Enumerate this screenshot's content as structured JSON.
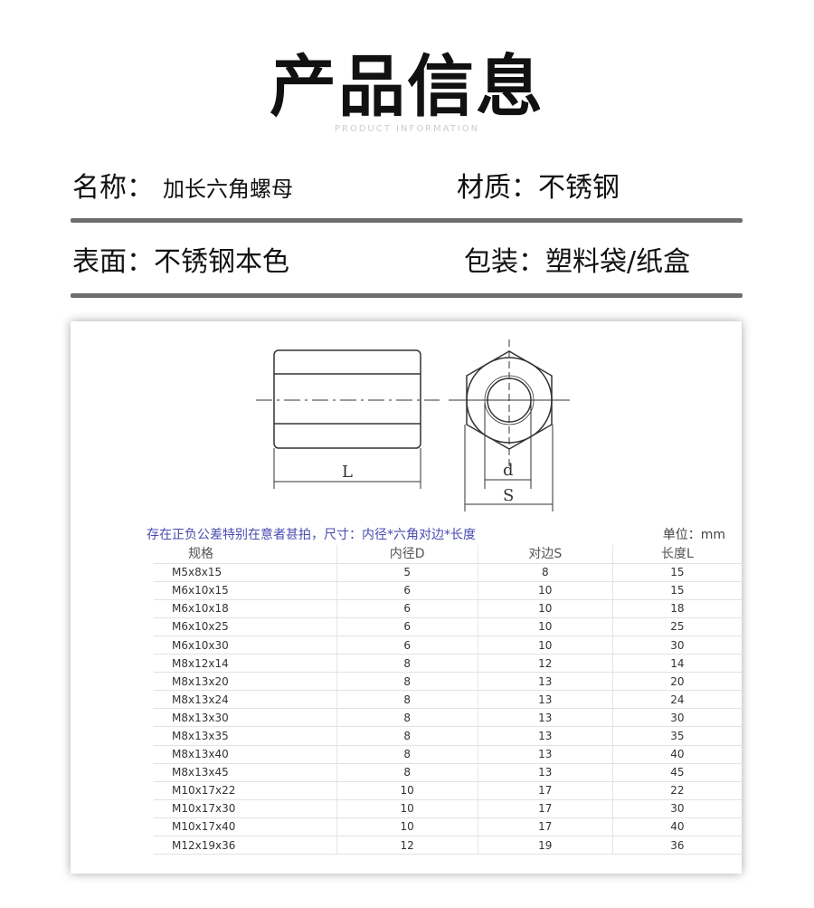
{
  "header": {
    "title": "产品信息",
    "subtitle": "PRODUCT INFORMATION"
  },
  "info": {
    "name_label": "名称：",
    "name_value": "加长六角螺母",
    "material": "材质：不锈钢",
    "surface": "表面：不锈钢本色",
    "packaging": "包装：塑料袋/纸盒"
  },
  "drawing": {
    "length_label": "L",
    "inner_label": "d",
    "across_flats_label": "S"
  },
  "table": {
    "note": "存在正负公差特别在意者甚拍，尺寸：内径*六角对边*长度",
    "unit": "单位：mm",
    "columns": [
      "规格",
      "内径D",
      "对边S",
      "长度L"
    ],
    "rows": [
      [
        "M5x8x15",
        "5",
        "8",
        "15"
      ],
      [
        "M6x10x15",
        "6",
        "10",
        "15"
      ],
      [
        "M6x10x18",
        "6",
        "10",
        "18"
      ],
      [
        "M6x10x25",
        "6",
        "10",
        "25"
      ],
      [
        "M6x10x30",
        "6",
        "10",
        "30"
      ],
      [
        "M8x12x14",
        "8",
        "12",
        "14"
      ],
      [
        "M8x13x20",
        "8",
        "13",
        "20"
      ],
      [
        "M8x13x24",
        "8",
        "13",
        "24"
      ],
      [
        "M8x13x30",
        "8",
        "13",
        "30"
      ],
      [
        "M8x13x35",
        "8",
        "13",
        "35"
      ],
      [
        "M8x13x40",
        "8",
        "13",
        "40"
      ],
      [
        "M8x13x45",
        "8",
        "13",
        "45"
      ],
      [
        "M10x17x22",
        "10",
        "17",
        "22"
      ],
      [
        "M10x17x30",
        "10",
        "17",
        "30"
      ],
      [
        "M10x17x40",
        "10",
        "17",
        "40"
      ],
      [
        "M12x19x36",
        "12",
        "19",
        "36"
      ]
    ]
  }
}
